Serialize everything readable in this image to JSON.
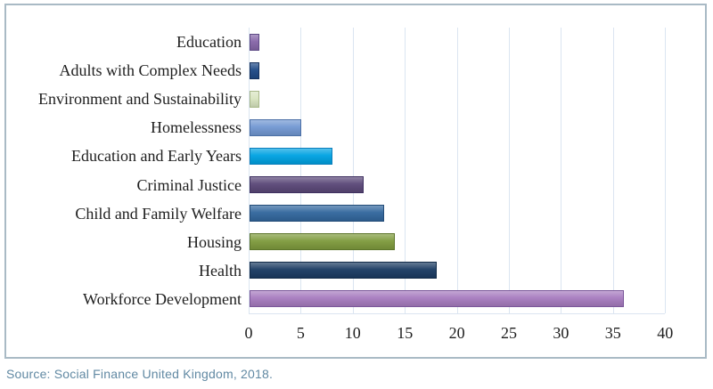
{
  "chart_data": {
    "type": "bar",
    "orientation": "horizontal",
    "title": "",
    "xlabel": "",
    "ylabel": "",
    "categories": [
      "Education",
      "Adults with Complex Needs",
      "Environment and Sustainability",
      "Homelessness",
      "Education and Early Years",
      "Criminal Justice",
      "Child and Family Welfare",
      "Housing",
      "Health",
      "Workforce Development"
    ],
    "values": [
      1,
      1,
      1,
      5,
      8,
      11,
      13,
      14,
      18,
      36
    ],
    "colors": [
      {
        "fill": "#8767A9",
        "border": "#5E4A85"
      },
      {
        "fill": "#1F4A87",
        "border": "#15305C"
      },
      {
        "fill": "#D9E5C1",
        "border": "#A9B98A"
      },
      {
        "fill": "#7298D2",
        "border": "#4B6FA6"
      },
      {
        "fill": "#00A2E2",
        "border": "#0B7EBB"
      },
      {
        "fill": "#5B4878",
        "border": "#3F3060"
      },
      {
        "fill": "#33689E",
        "border": "#224B77"
      },
      {
        "fill": "#7F9B3E",
        "border": "#5C752A"
      },
      {
        "fill": "#1C3C63",
        "border": "#112A47"
      },
      {
        "fill": "#A77CBF",
        "border": "#7A5699"
      }
    ],
    "x_ticks": [
      0,
      5,
      10,
      15,
      20,
      25,
      30,
      35,
      40
    ],
    "xlim": [
      0,
      40
    ],
    "grid": "vertical-light",
    "legend": "none",
    "style": {
      "grid_color": "#dbe5f1",
      "frame_border_color": "#a9bac5",
      "text_color": "#1e1e1e",
      "source_color": "#6189a3"
    }
  },
  "source": {
    "text": "Source: Social Finance United Kingdom, 2018."
  }
}
